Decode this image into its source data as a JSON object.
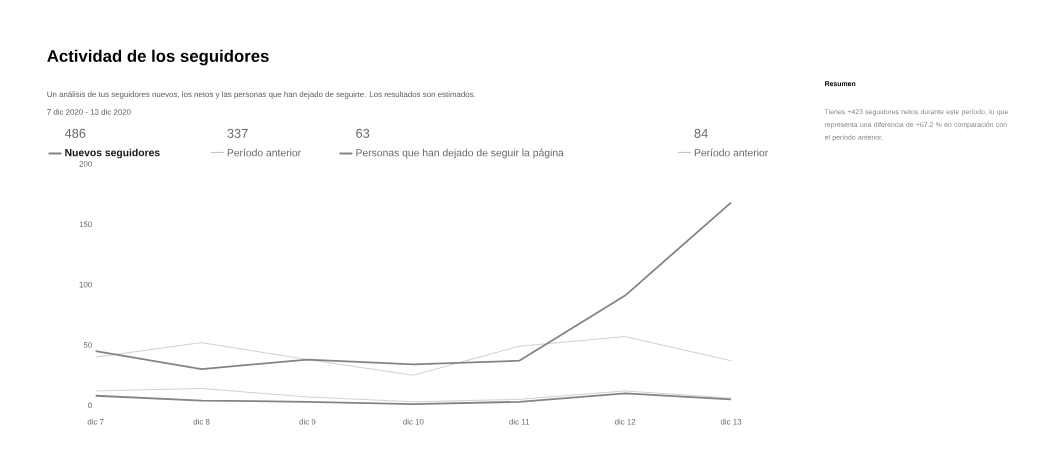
{
  "chart_data": {
    "type": "line",
    "title": "Actividad de los seguidores",
    "subtitle": "Un análisis de tus seguidores nuevos, los netos y las personas que han dejado de seguirte. Los resultados son estimados.",
    "annotations": [
      "7 dic 2020 - 13 dic 2020",
      "Resumen",
      "Tienes +423 seguidores netos durante este período, lo que representa una diferencia de +67.2 % en comparación con el período anterior.",
      "486",
      "337",
      "63",
      "84"
    ],
    "categories": [
      "dic 7",
      "dic 8",
      "dic 9",
      "dic 10",
      "dic 11",
      "dic 12",
      "dic 13"
    ],
    "ylim": [
      0,
      200
    ],
    "yticks": [
      0,
      50,
      100,
      150,
      200
    ],
    "grid": false,
    "legend": "top left",
    "marker": "none",
    "line_style": "solid",
    "series": [
      {
        "name": "Nuevos seguidores",
        "color": "#8c7f82",
        "values": [
          45,
          30,
          38,
          34,
          37,
          91,
          168
        ]
      },
      {
        "name": "Período anterior",
        "color": "#c9c1c1",
        "values": [
          40,
          52,
          38,
          25,
          49,
          57,
          37
        ]
      },
      {
        "name": "Personas que han dejado de seguir la página",
        "color": "#8c7f82",
        "values": [
          8,
          4,
          3,
          1,
          3,
          10,
          5
        ]
      },
      {
        "name": "Período anterior",
        "color": "#bcc6d6",
        "values": [
          12,
          14,
          7,
          3,
          5,
          12,
          6
        ]
      }
    ]
  }
}
